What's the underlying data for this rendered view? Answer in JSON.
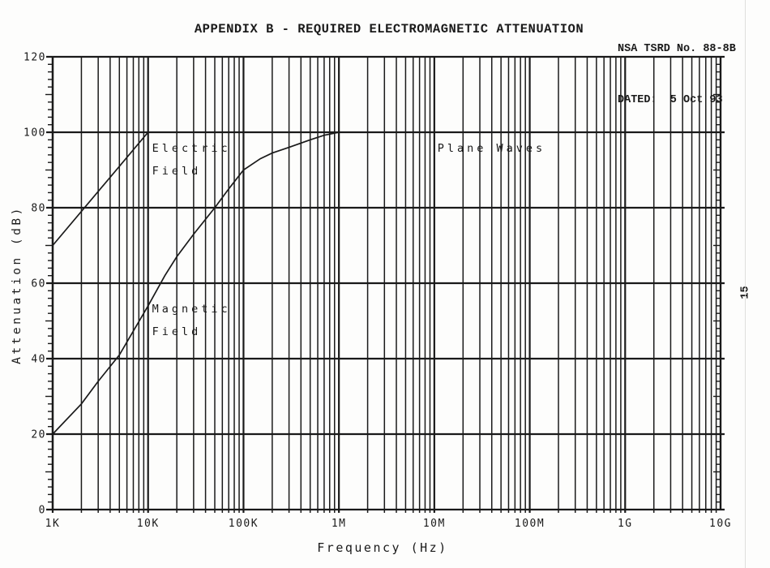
{
  "page": {
    "doc_ref_line1": "NSA TSRD No. 88-8B",
    "doc_ref_line2": "DATED:  5 Oct 93",
    "title": "APPENDIX B - REQUIRED ELECTROMAGNETIC ATTENUATION",
    "page_number": "15",
    "ink_color": "#1a1a1a",
    "paper_color": "#fdfdfc"
  },
  "chart_data": {
    "type": "line",
    "title": "APPENDIX B - REQUIRED ELECTROMAGNETIC ATTENUATION",
    "xlabel": "Frequency (Hz)",
    "ylabel": "Attenuation (dB)",
    "x_scale": "log",
    "x_range_hz": [
      1000,
      10000000000
    ],
    "x_ticks": [
      {
        "hz": 1000,
        "label": "1K"
      },
      {
        "hz": 10000,
        "label": "10K"
      },
      {
        "hz": 100000,
        "label": "100K"
      },
      {
        "hz": 1000000,
        "label": "1M"
      },
      {
        "hz": 10000000,
        "label": "10M"
      },
      {
        "hz": 100000000,
        "label": "100M"
      },
      {
        "hz": 1000000000,
        "label": "1G"
      },
      {
        "hz": 10000000000,
        "label": "10G"
      }
    ],
    "ylim": [
      0,
      120
    ],
    "y_major_step": 20,
    "y_minor_tick_step": 2,
    "grid": "full log-x vertical gridlines (decades + 2..9 minors); horizontal lines every 20 dB; minor tick marks every 2 dB on left and right borders",
    "legend_position": "inline-labels",
    "series": [
      {
        "name": "Electric Field",
        "points": [
          [
            1000,
            70
          ],
          [
            10000,
            100
          ],
          [
            10000000000,
            100
          ]
        ]
      },
      {
        "name": "Magnetic Field",
        "points": [
          [
            1000,
            20
          ],
          [
            2000,
            28
          ],
          [
            3000,
            34
          ],
          [
            5000,
            41
          ],
          [
            10000,
            54
          ],
          [
            15000,
            62
          ],
          [
            20000,
            67
          ],
          [
            30000,
            73
          ],
          [
            50000,
            80
          ],
          [
            70000,
            85
          ],
          [
            100000,
            90
          ],
          [
            150000,
            93
          ],
          [
            200000,
            94.5
          ],
          [
            300000,
            96
          ],
          [
            500000,
            98
          ],
          [
            700000,
            99.2
          ],
          [
            1000000,
            100
          ],
          [
            10000000000,
            100
          ]
        ]
      },
      {
        "name": "Plane Waves",
        "points": [
          [
            1000000,
            100
          ],
          [
            10000000000,
            100
          ]
        ]
      }
    ],
    "curve_labels": [
      {
        "name": "electric-field-label",
        "lines": [
          "Electric",
          "Field"
        ],
        "hz": 11000,
        "db": 94.8
      },
      {
        "name": "magnetic-field-label",
        "lines": [
          "Magnetic",
          "Field"
        ],
        "hz": 11000,
        "db": 52.3
      },
      {
        "name": "plane-waves-label",
        "lines": [
          "Plane Waves"
        ],
        "hz": 10800000,
        "db": 94.8
      }
    ]
  }
}
